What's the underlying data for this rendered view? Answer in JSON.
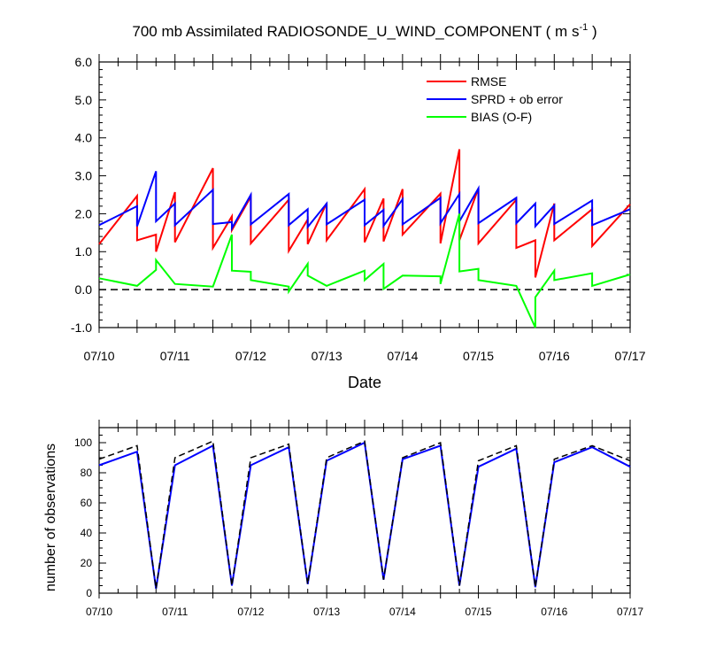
{
  "title": "700 mb Assimilated RADIOSONDE_U_WIND_COMPONENT ( m s",
  "title_sup": "-1",
  "title_end": " )",
  "chart_data": [
    {
      "type": "line",
      "xlabel": "Date",
      "ylabel": "",
      "ylim": [
        -1.0,
        6.0
      ],
      "xlim": [
        "07/10",
        "07/17"
      ],
      "yticks": [
        "-1.0",
        "0.0",
        "1.0",
        "2.0",
        "3.0",
        "4.0",
        "5.0",
        "6.0"
      ],
      "xticks": [
        "07/10",
        "07/11",
        "07/12",
        "07/13",
        "07/14",
        "07/15",
        "07/16",
        "07/17"
      ],
      "x_unit": "days since 07/10 00Z",
      "reference_line": 0.0,
      "legend": "top-right",
      "series": [
        {
          "name": "RMSE",
          "color": "#ff0000",
          "points": [
            [
              0.0,
              1.2
            ],
            [
              0.5,
              2.47
            ],
            [
              0.5,
              1.3
            ],
            [
              0.75,
              1.45
            ],
            [
              0.75,
              1.0
            ],
            [
              1.0,
              2.57
            ],
            [
              1.0,
              1.25
            ],
            [
              1.5,
              3.2
            ],
            [
              1.5,
              1.1
            ],
            [
              1.75,
              1.93
            ],
            [
              1.75,
              1.57
            ],
            [
              2.0,
              2.45
            ],
            [
              2.0,
              1.22
            ],
            [
              2.5,
              2.37
            ],
            [
              2.5,
              1.02
            ],
            [
              2.75,
              1.85
            ],
            [
              2.75,
              1.2
            ],
            [
              3.0,
              2.28
            ],
            [
              3.0,
              1.3
            ],
            [
              3.5,
              2.65
            ],
            [
              3.5,
              1.25
            ],
            [
              3.75,
              2.4
            ],
            [
              3.75,
              1.27
            ],
            [
              4.0,
              2.65
            ],
            [
              4.0,
              1.45
            ],
            [
              4.5,
              2.53
            ],
            [
              4.5,
              1.22
            ],
            [
              4.75,
              3.7
            ],
            [
              4.75,
              1.3
            ],
            [
              5.0,
              2.67
            ],
            [
              5.0,
              1.22
            ],
            [
              5.5,
              2.37
            ],
            [
              5.5,
              1.1
            ],
            [
              5.75,
              1.3
            ],
            [
              5.75,
              0.32
            ],
            [
              6.0,
              2.27
            ],
            [
              6.0,
              1.3
            ],
            [
              6.5,
              2.12
            ],
            [
              6.5,
              1.15
            ],
            [
              7.0,
              2.25
            ]
          ]
        },
        {
          "name": "SPRD + ob error",
          "color": "#0000ff",
          "points": [
            [
              0.0,
              1.7
            ],
            [
              0.5,
              2.2
            ],
            [
              0.5,
              1.67
            ],
            [
              0.75,
              3.12
            ],
            [
              0.75,
              1.8
            ],
            [
              1.0,
              2.27
            ],
            [
              1.0,
              1.7
            ],
            [
              1.5,
              2.63
            ],
            [
              1.5,
              1.73
            ],
            [
              1.75,
              1.78
            ],
            [
              1.75,
              1.62
            ],
            [
              2.0,
              2.5
            ],
            [
              2.0,
              1.72
            ],
            [
              2.5,
              2.52
            ],
            [
              2.5,
              1.7
            ],
            [
              2.75,
              2.12
            ],
            [
              2.75,
              1.65
            ],
            [
              3.0,
              2.27
            ],
            [
              3.0,
              1.72
            ],
            [
              3.5,
              2.37
            ],
            [
              3.5,
              1.7
            ],
            [
              3.75,
              2.1
            ],
            [
              3.75,
              1.68
            ],
            [
              4.0,
              2.38
            ],
            [
              4.0,
              1.72
            ],
            [
              4.5,
              2.42
            ],
            [
              4.5,
              1.75
            ],
            [
              4.75,
              2.52
            ],
            [
              4.75,
              1.8
            ],
            [
              5.0,
              2.67
            ],
            [
              5.0,
              1.75
            ],
            [
              5.5,
              2.42
            ],
            [
              5.5,
              1.75
            ],
            [
              5.75,
              2.27
            ],
            [
              5.75,
              1.67
            ],
            [
              6.0,
              2.22
            ],
            [
              6.0,
              1.73
            ],
            [
              6.5,
              2.35
            ],
            [
              6.5,
              1.7
            ],
            [
              7.0,
              2.12
            ]
          ]
        },
        {
          "name": "BIAS (O-F)",
          "color": "#00ff00",
          "points": [
            [
              0.0,
              0.3
            ],
            [
              0.5,
              0.1
            ],
            [
              0.75,
              0.52
            ],
            [
              0.75,
              0.78
            ],
            [
              1.0,
              0.15
            ],
            [
              1.5,
              0.08
            ],
            [
              1.75,
              1.45
            ],
            [
              1.75,
              0.5
            ],
            [
              2.0,
              0.47
            ],
            [
              2.0,
              0.25
            ],
            [
              2.5,
              0.08
            ],
            [
              2.5,
              -0.05
            ],
            [
              2.75,
              0.68
            ],
            [
              2.75,
              0.37
            ],
            [
              3.0,
              0.1
            ],
            [
              3.5,
              0.5
            ],
            [
              3.5,
              0.25
            ],
            [
              3.75,
              0.68
            ],
            [
              3.75,
              0.02
            ],
            [
              4.0,
              0.37
            ],
            [
              4.5,
              0.35
            ],
            [
              4.5,
              0.15
            ],
            [
              4.75,
              2.0
            ],
            [
              4.75,
              0.48
            ],
            [
              5.0,
              0.55
            ],
            [
              5.0,
              0.25
            ],
            [
              5.5,
              0.1
            ],
            [
              5.75,
              -1.0
            ],
            [
              5.75,
              -0.2
            ],
            [
              6.0,
              0.5
            ],
            [
              6.0,
              0.25
            ],
            [
              6.5,
              0.43
            ],
            [
              6.5,
              0.1
            ],
            [
              7.0,
              0.4
            ]
          ]
        }
      ]
    },
    {
      "type": "line",
      "xlabel": "",
      "ylabel": "number of observations",
      "ylim": [
        0,
        110
      ],
      "xlim": [
        "07/10",
        "07/17"
      ],
      "yticks": [
        "0",
        "20",
        "40",
        "60",
        "80",
        "100"
      ],
      "xticks": [
        "07/10",
        "07/11",
        "07/12",
        "07/13",
        "07/14",
        "07/15",
        "07/16",
        "07/17"
      ],
      "x_unit": "days since 07/10 00Z",
      "series": [
        {
          "color": "#0000ff",
          "style": "solid",
          "points": [
            [
              0.0,
              85
            ],
            [
              0.5,
              94
            ],
            [
              0.75,
              3
            ],
            [
              1.0,
              85
            ],
            [
              1.5,
              98
            ],
            [
              1.75,
              5
            ],
            [
              2.0,
              85
            ],
            [
              2.5,
              97
            ],
            [
              2.75,
              6
            ],
            [
              3.0,
              88
            ],
            [
              3.5,
              100
            ],
            [
              3.75,
              9
            ],
            [
              4.0,
              89
            ],
            [
              4.5,
              98
            ],
            [
              4.75,
              5
            ],
            [
              5.0,
              84
            ],
            [
              5.5,
              96
            ],
            [
              5.75,
              4
            ],
            [
              6.0,
              87
            ],
            [
              6.5,
              97
            ],
            [
              7.0,
              84
            ]
          ]
        },
        {
          "color": "#000000",
          "style": "dashed",
          "points": [
            [
              0.0,
              89
            ],
            [
              0.5,
              98
            ],
            [
              0.75,
              3
            ],
            [
              1.0,
              90
            ],
            [
              1.5,
              101
            ],
            [
              1.75,
              5
            ],
            [
              2.0,
              90
            ],
            [
              2.5,
              99
            ],
            [
              2.75,
              6
            ],
            [
              3.0,
              90
            ],
            [
              3.5,
              101
            ],
            [
              3.75,
              9
            ],
            [
              4.0,
              90
            ],
            [
              4.5,
              100
            ],
            [
              4.75,
              5
            ],
            [
              5.0,
              88
            ],
            [
              5.5,
              98
            ],
            [
              5.75,
              4
            ],
            [
              6.0,
              89
            ],
            [
              6.5,
              98
            ],
            [
              7.0,
              88
            ]
          ]
        }
      ]
    }
  ]
}
